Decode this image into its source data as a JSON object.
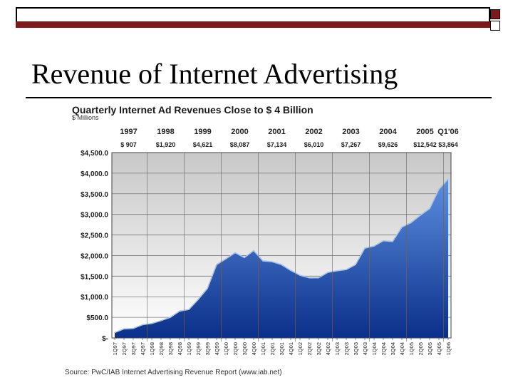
{
  "slide": {
    "title": "Revenue of Internet Advertising"
  },
  "colors": {
    "accent_dark_red": "#7a1a1a",
    "area_dark": "#0b2f8a",
    "area_light": "#5c8fe0"
  },
  "chart_data": {
    "type": "area",
    "title": "Quarterly Internet Ad Revenues Close to $ 4 Billion",
    "subtitle": "$ Millions",
    "source": "Source: PwC/IAB Internet Advertising Revenue Report (www.iab.net)",
    "ylim": [
      0,
      4500
    ],
    "yticks": [
      0,
      500,
      1000,
      1500,
      2000,
      2500,
      3000,
      3500,
      4000,
      4500
    ],
    "ytick_labels": [
      "$-",
      "$500.0",
      "$1,000.0",
      "$1,500.0",
      "$2,000.0",
      "$2,500.0",
      "$3,000.0",
      "$3,500.0",
      "$4,000.0",
      "$4,500.0"
    ],
    "grid": true,
    "years": [
      {
        "label": "1997",
        "total": "$    907",
        "start": 0
      },
      {
        "label": "1998",
        "total": "$1,920",
        "start": 4
      },
      {
        "label": "1999",
        "total": "$4,621",
        "start": 8
      },
      {
        "label": "2000",
        "total": "$8,087",
        "start": 12
      },
      {
        "label": "2001",
        "total": "$7,134",
        "start": 16
      },
      {
        "label": "2002",
        "total": "$6,010",
        "start": 20
      },
      {
        "label": "2003",
        "total": "$7,267",
        "start": 24
      },
      {
        "label": "2004",
        "total": "$9,626",
        "start": 28
      },
      {
        "label": "2005",
        "total": "$12,542",
        "start": 32
      },
      {
        "label": "Q1'06",
        "total": "$3,864",
        "start": 36
      }
    ],
    "categories": [
      "1Q97",
      "2Q97",
      "3Q97",
      "4Q97",
      "1Q98",
      "2Q98",
      "3Q98",
      "4Q98",
      "1Q99",
      "2Q99",
      "3Q99",
      "4Q99",
      "1Q00",
      "2Q00",
      "3Q00",
      "4Q00",
      "1Q01",
      "2Q01",
      "3Q01",
      "4Q01",
      "1Q02",
      "2Q02",
      "3Q02",
      "4Q02",
      "1Q03",
      "2Q03",
      "3Q03",
      "4Q03",
      "1Q04",
      "2Q04",
      "3Q04",
      "4Q04",
      "1Q05",
      "2Q05",
      "3Q05",
      "4Q05",
      "1Q06"
    ],
    "values": [
      130,
      220,
      230,
      320,
      350,
      420,
      500,
      650,
      690,
      930,
      1200,
      1780,
      1920,
      2070,
      1950,
      2120,
      1870,
      1850,
      1780,
      1640,
      1520,
      1460,
      1460,
      1590,
      1630,
      1660,
      1780,
      2180,
      2230,
      2360,
      2340,
      2690,
      2800,
      2980,
      3140,
      3610,
      3860
    ]
  }
}
